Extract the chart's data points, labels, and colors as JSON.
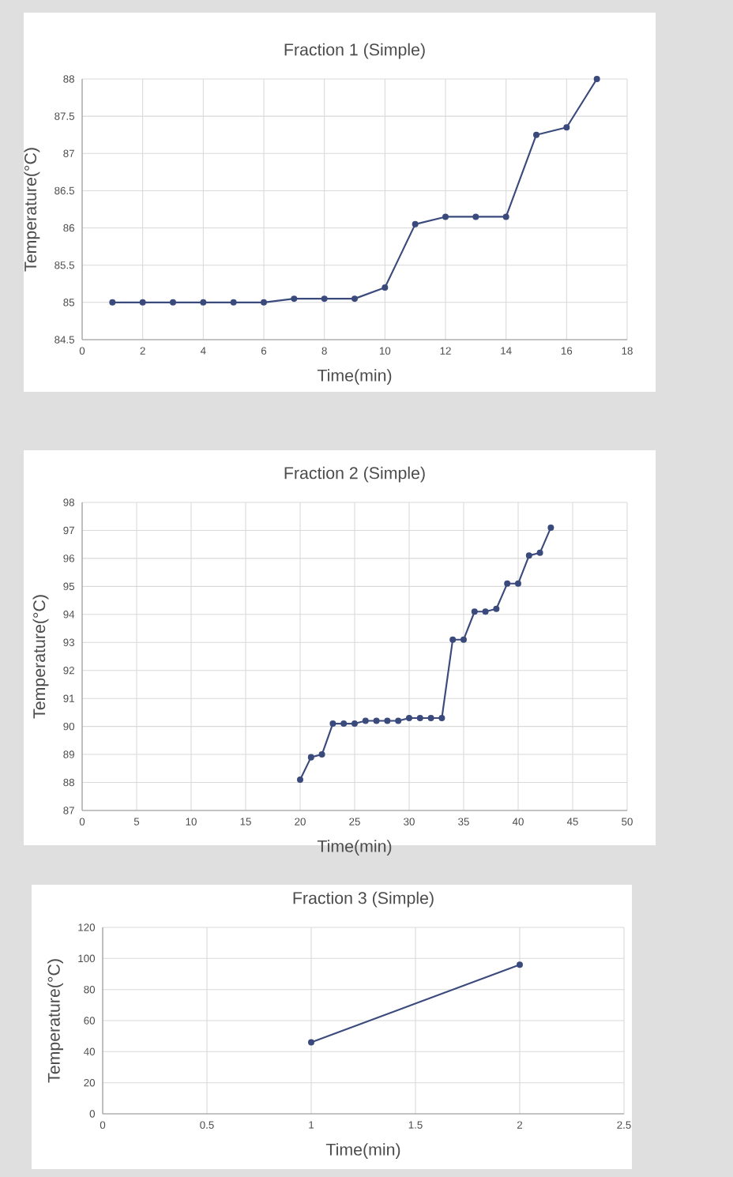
{
  "chart_data": [
    {
      "type": "line",
      "title": "Fraction 1 (Simple)",
      "xlabel": "Time(min)",
      "ylabel": "Temperature(°C)",
      "x": [
        1,
        2,
        3,
        4,
        5,
        6,
        7,
        8,
        9,
        10,
        11,
        12,
        13,
        14,
        15,
        16,
        17
      ],
      "series": [
        {
          "color": "#3b4a7c",
          "values": [
            85.0,
            85.0,
            85.0,
            85.0,
            85.0,
            85.0,
            85.05,
            85.05,
            85.05,
            85.2,
            86.05,
            86.15,
            86.15,
            86.15,
            87.25,
            87.35,
            88.0
          ]
        }
      ],
      "xlim": [
        0,
        18
      ],
      "xticks": [
        0,
        2,
        4,
        6,
        8,
        10,
        12,
        14,
        16,
        18
      ],
      "ylim": [
        84.5,
        88
      ],
      "yticks": [
        84.5,
        85,
        85.5,
        86,
        86.5,
        87,
        87.5,
        88
      ],
      "grid": true,
      "marker": "circle",
      "line_style": "solid"
    },
    {
      "type": "line",
      "title": "Fraction 2 (Simple)",
      "xlabel": "Time(min)",
      "ylabel": "Temperature(°C)",
      "x": [
        20,
        21,
        22,
        23,
        24,
        25,
        26,
        27,
        28,
        29,
        30,
        31,
        32,
        33,
        34,
        35,
        36,
        37,
        38,
        39,
        40,
        41,
        42,
        43
      ],
      "series": [
        {
          "color": "#3b4a7c",
          "values": [
            88.1,
            88.9,
            89.0,
            90.1,
            90.1,
            90.1,
            90.2,
            90.2,
            90.2,
            90.2,
            90.3,
            90.3,
            90.3,
            90.3,
            93.1,
            93.1,
            94.1,
            94.1,
            94.2,
            95.1,
            95.1,
            96.1,
            96.2,
            97.1
          ]
        }
      ],
      "xlim": [
        0,
        50
      ],
      "xticks": [
        0,
        5,
        10,
        15,
        20,
        25,
        30,
        35,
        40,
        45,
        50
      ],
      "ylim": [
        87,
        98
      ],
      "yticks": [
        87,
        88,
        89,
        90,
        91,
        92,
        93,
        94,
        95,
        96,
        97,
        98
      ],
      "grid": true,
      "marker": "circle",
      "line_style": "solid"
    },
    {
      "type": "line",
      "title": "Fraction 3 (Simple)",
      "xlabel": "Time(min)",
      "ylabel": "Temperature(°C)",
      "x": [
        1,
        2
      ],
      "series": [
        {
          "color": "#3b4a7c",
          "values": [
            46,
            96
          ]
        }
      ],
      "xlim": [
        0,
        2.5
      ],
      "xticks": [
        0,
        0.5,
        1,
        1.5,
        2,
        2.5
      ],
      "ylim": [
        0,
        120
      ],
      "yticks": [
        0,
        20,
        40,
        60,
        80,
        100,
        120
      ],
      "grid": true,
      "marker": "circle",
      "line_style": "solid"
    }
  ]
}
